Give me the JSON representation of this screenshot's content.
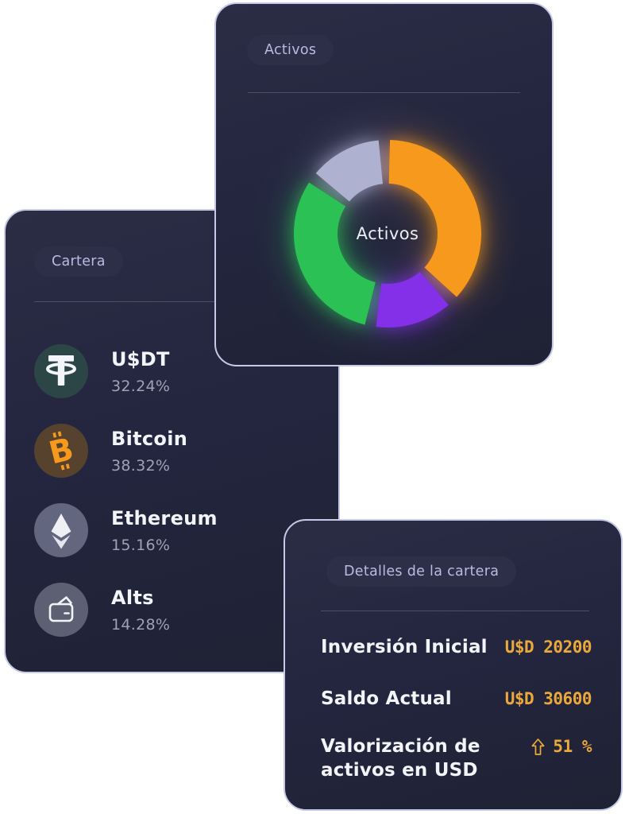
{
  "cards": {
    "activos": {
      "badge": "Activos"
    },
    "cartera": {
      "badge": "Cartera",
      "assets": [
        {
          "name": "U$DT",
          "pct": "32.24%",
          "icon": "tether",
          "icon_bg": "#2c4547"
        },
        {
          "name": "Bitcoin",
          "pct": "38.32%",
          "icon": "bitcoin",
          "icon_bg": "#57422e"
        },
        {
          "name": "Ethereum",
          "pct": "15.16%",
          "icon": "ethereum",
          "icon_bg": "#63667f"
        },
        {
          "name": "Alts",
          "pct": "14.28%",
          "icon": "wallet",
          "icon_bg": "#5d6073"
        }
      ]
    },
    "detalles": {
      "badge": "Detalles de la cartera",
      "accent_color": "#eba93b",
      "rows": [
        {
          "label": "Inversión Inicial",
          "value": "U$D 20200",
          "arrow": false
        },
        {
          "label": "Saldo Actual",
          "value": "U$D 30600",
          "arrow": false
        },
        {
          "label": "Valorización de activos en USD",
          "value": "51 %",
          "arrow": true
        }
      ]
    }
  },
  "chart_data": {
    "type": "pie",
    "subtype": "donut",
    "center_label": "Activos",
    "segments": [
      {
        "label": "Bitcoin",
        "value": 38.32,
        "color": "#f6991d"
      },
      {
        "label": "Ethereum",
        "value": 15.16,
        "color": "#8430e8"
      },
      {
        "label": "U$DT",
        "value": 32.24,
        "color": "#2bc155"
      },
      {
        "label": "Alts",
        "value": 14.28,
        "color": "#afb1d0"
      }
    ],
    "start_angle_deg": -2,
    "gap_deg": 7,
    "outer_radius": 118,
    "inner_radius": 63,
    "legend": "none",
    "glow": true
  }
}
